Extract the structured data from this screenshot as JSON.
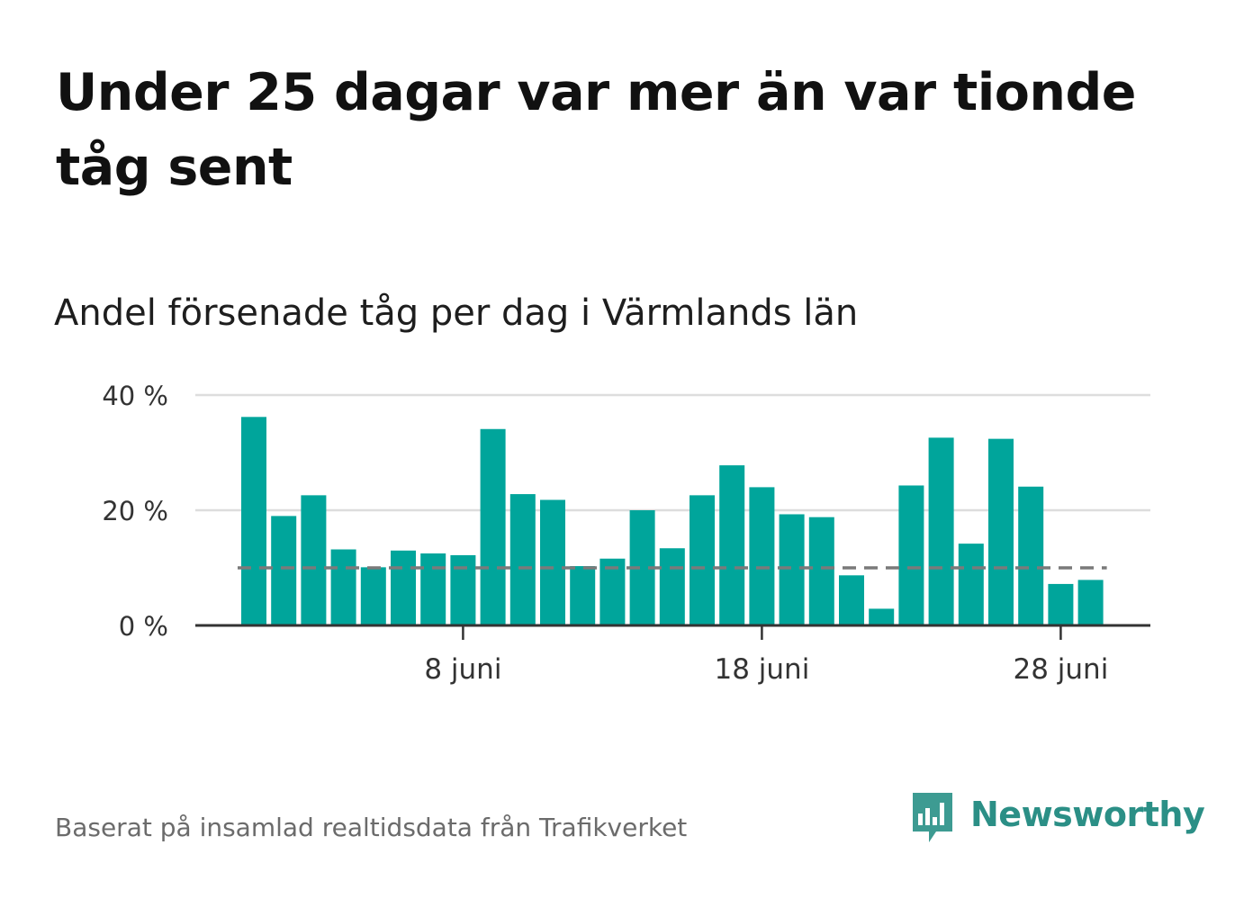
{
  "title": "Under 25 dagar var mer än var tionde tåg sent",
  "subtitle": "Andel försenade tåg per dag i Värmlands län",
  "source": "Baserat på insamlad realtidsdata från Trafikverket",
  "brand": {
    "name": "Newsworthy",
    "icon": "bar-chart-speech-bubble-icon",
    "color": "#2b8f86"
  },
  "chart_data": {
    "type": "bar",
    "x": [
      1,
      2,
      3,
      4,
      5,
      6,
      7,
      8,
      9,
      10,
      11,
      12,
      13,
      14,
      15,
      16,
      17,
      18,
      19,
      20,
      21,
      22,
      23,
      24,
      25,
      26,
      27,
      28,
      29
    ],
    "values": [
      36.2,
      19.0,
      22.6,
      13.2,
      10.1,
      13.0,
      12.5,
      12.2,
      34.1,
      22.8,
      21.8,
      10.3,
      11.6,
      20.0,
      13.4,
      22.6,
      27.8,
      24.0,
      19.3,
      18.8,
      8.7,
      2.9,
      24.3,
      32.6,
      14.2,
      32.4,
      24.1,
      7.2,
      7.9
    ],
    "xticks": [
      {
        "x": 8,
        "label": "8 juni"
      },
      {
        "x": 18,
        "label": "18 juni"
      },
      {
        "x": 28,
        "label": "28 juni"
      }
    ],
    "yticks": [
      {
        "y": 0,
        "label": "0 %"
      },
      {
        "y": 20,
        "label": "20 %"
      },
      {
        "y": 40,
        "label": "40 %"
      }
    ],
    "ylim": [
      0,
      40
    ],
    "reference_line": {
      "y": 10,
      "style": "dashed"
    },
    "grid": true,
    "colors": {
      "bar": "#00a59b",
      "reference": "#7a7a7a",
      "grid": "#dddddd",
      "axis": "#333333"
    }
  }
}
